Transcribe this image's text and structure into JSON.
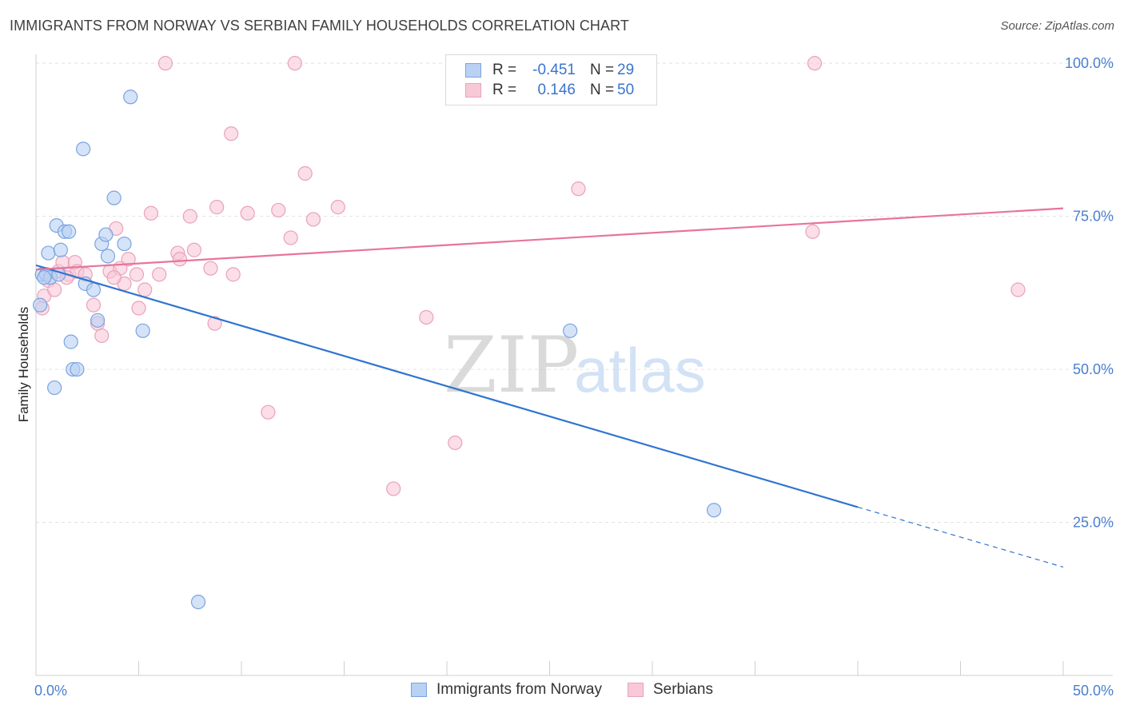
{
  "header": {
    "title": "IMMIGRANTS FROM NORWAY VS SERBIAN FAMILY HOUSEHOLDS CORRELATION CHART",
    "source": "Source: ZipAtlas.com"
  },
  "watermark": {
    "zip": "ZIP",
    "atlas": "atlas"
  },
  "legend": {
    "rows": [
      {
        "r_label": "R =",
        "r_value": "-0.451",
        "n_label": "N =",
        "n_value": "29"
      },
      {
        "r_label": "R =",
        "r_value": "0.146",
        "n_label": "N =",
        "n_value": "50"
      }
    ]
  },
  "bottom_legend": [
    "Immigrants from Norway",
    "Serbians"
  ],
  "colors": {
    "norway_fill": "#b9d1f3",
    "norway_stroke": "#7aa4e0",
    "norway_line": "#2f74d0",
    "serbian_fill": "#f8c8d7",
    "serbian_stroke": "#e9a2bb",
    "serbian_line": "#e8749c",
    "grid": "#e3e3e3",
    "tick_text": "#4a7fd0"
  },
  "chart_data": {
    "type": "scatter",
    "title": "IMMIGRANTS FROM NORWAY VS SERBIAN FAMILY HOUSEHOLDS CORRELATION CHART",
    "xlabel": "",
    "ylabel": "Family Households",
    "xlim": [
      0,
      50
    ],
    "ylim": [
      0,
      102.5
    ],
    "x_tick_labels": [
      "0.0%",
      "50.0%"
    ],
    "y_ticks": [
      25,
      50,
      75,
      100
    ],
    "y_tick_labels": [
      "25.0%",
      "50.0%",
      "75.0%",
      "100.0%"
    ],
    "grid": true,
    "series": [
      {
        "name": "Immigrants from Norway",
        "r": -0.451,
        "n": 29,
        "points": [
          [
            0.2,
            60.5
          ],
          [
            0.3,
            65.5
          ],
          [
            0.5,
            65.5
          ],
          [
            0.6,
            69.0
          ],
          [
            0.7,
            65.0
          ],
          [
            0.9,
            47.0
          ],
          [
            1.0,
            73.5
          ],
          [
            1.1,
            65.5
          ],
          [
            1.2,
            69.5
          ],
          [
            1.4,
            72.5
          ],
          [
            1.6,
            72.5
          ],
          [
            1.7,
            54.5
          ],
          [
            1.8,
            50.0
          ],
          [
            2.0,
            50.0
          ],
          [
            2.3,
            86.0
          ],
          [
            2.4,
            64.0
          ],
          [
            2.8,
            63.0
          ],
          [
            3.0,
            58.0
          ],
          [
            3.2,
            70.5
          ],
          [
            3.4,
            72.0
          ],
          [
            3.5,
            68.5
          ],
          [
            3.8,
            78.0
          ],
          [
            4.3,
            70.5
          ],
          [
            4.6,
            94.5
          ],
          [
            5.2,
            56.3
          ],
          [
            7.9,
            12.0
          ],
          [
            26.0,
            56.3
          ],
          [
            33.0,
            27.0
          ],
          [
            0.4,
            65.0
          ]
        ],
        "trend": {
          "x0": 0,
          "y0": 67.0,
          "x1": 40,
          "y1": 27.5,
          "dash_x1": 50,
          "dash_y1": 17.7
        }
      },
      {
        "name": "Serbians",
        "r": 0.146,
        "n": 50,
        "points": [
          [
            0.3,
            60.0
          ],
          [
            0.4,
            62.0
          ],
          [
            0.6,
            64.5
          ],
          [
            0.9,
            63.0
          ],
          [
            1.1,
            66.0
          ],
          [
            1.3,
            67.5
          ],
          [
            1.6,
            65.5
          ],
          [
            1.9,
            67.5
          ],
          [
            2.0,
            66.0
          ],
          [
            2.4,
            65.5
          ],
          [
            2.8,
            60.5
          ],
          [
            3.0,
            57.5
          ],
          [
            3.2,
            55.5
          ],
          [
            3.6,
            66.0
          ],
          [
            3.9,
            73.0
          ],
          [
            4.1,
            66.5
          ],
          [
            4.3,
            64.0
          ],
          [
            4.5,
            68.0
          ],
          [
            4.9,
            65.5
          ],
          [
            5.0,
            60.0
          ],
          [
            5.3,
            63.0
          ],
          [
            5.6,
            75.5
          ],
          [
            6.0,
            65.5
          ],
          [
            6.3,
            100.0
          ],
          [
            6.9,
            69.0
          ],
          [
            7.0,
            68.0
          ],
          [
            7.5,
            75.0
          ],
          [
            7.7,
            69.5
          ],
          [
            8.5,
            66.5
          ],
          [
            8.7,
            57.5
          ],
          [
            8.8,
            76.5
          ],
          [
            9.6,
            65.5
          ],
          [
            9.5,
            88.5
          ],
          [
            10.3,
            75.5
          ],
          [
            11.3,
            43.0
          ],
          [
            11.8,
            76.0
          ],
          [
            12.4,
            71.5
          ],
          [
            12.6,
            100.0
          ],
          [
            13.1,
            82.0
          ],
          [
            13.5,
            74.5
          ],
          [
            14.7,
            76.5
          ],
          [
            17.4,
            30.5
          ],
          [
            19.0,
            58.5
          ],
          [
            20.4,
            38.0
          ],
          [
            26.4,
            79.5
          ],
          [
            37.8,
            72.5
          ],
          [
            37.9,
            100.0
          ],
          [
            47.8,
            63.0
          ],
          [
            1.5,
            65.0
          ],
          [
            3.8,
            65.0
          ]
        ],
        "trend": {
          "x0": 0,
          "y0": 66.3,
          "x1": 50,
          "y1": 76.3
        }
      }
    ]
  }
}
